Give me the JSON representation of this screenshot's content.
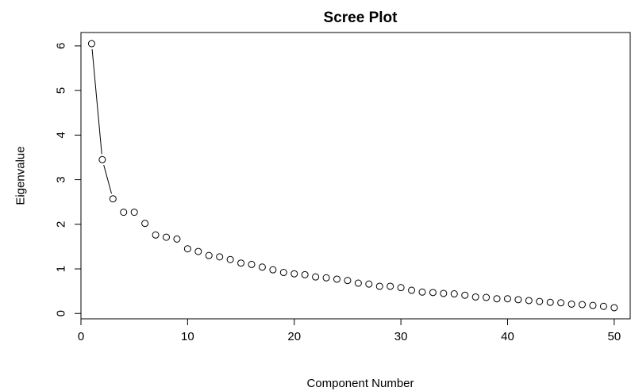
{
  "chart_data": {
    "type": "scatter",
    "title": "Scree Plot",
    "xlabel": "Component Number",
    "ylabel": "Eigenvalue",
    "xlim": [
      0,
      51.5
    ],
    "ylim": [
      -0.12,
      6.3
    ],
    "xticks": [
      0,
      10,
      20,
      30,
      40,
      50
    ],
    "yticks": [
      0,
      1,
      2,
      3,
      4,
      5,
      6
    ],
    "x_tick_labels": [
      "0",
      "10",
      "20",
      "30",
      "40",
      "50"
    ],
    "y_tick_labels": [
      "0",
      "1",
      "2",
      "3",
      "4",
      "5",
      "6"
    ],
    "grid": false,
    "point_style": "open-circle",
    "line_connect_points": [
      1,
      2,
      3
    ],
    "series": [
      {
        "x": [
          1,
          2,
          3,
          4,
          5,
          6,
          7,
          8,
          9,
          10,
          11,
          12,
          13,
          14,
          15,
          16,
          17,
          18,
          19,
          20,
          21,
          22,
          23,
          24,
          25,
          26,
          27,
          28,
          29,
          30,
          31,
          32,
          33,
          34,
          35,
          36,
          37,
          38,
          39,
          40,
          41,
          42,
          43,
          44,
          45,
          46,
          47,
          48,
          49,
          50
        ],
        "values": [
          6.05,
          3.45,
          2.57,
          2.27,
          2.27,
          2.02,
          1.76,
          1.71,
          1.67,
          1.45,
          1.39,
          1.3,
          1.27,
          1.21,
          1.13,
          1.1,
          1.04,
          0.98,
          0.92,
          0.89,
          0.87,
          0.82,
          0.8,
          0.77,
          0.74,
          0.68,
          0.66,
          0.61,
          0.61,
          0.58,
          0.52,
          0.48,
          0.47,
          0.45,
          0.44,
          0.41,
          0.37,
          0.36,
          0.33,
          0.33,
          0.31,
          0.29,
          0.27,
          0.25,
          0.24,
          0.21,
          0.2,
          0.18,
          0.16,
          0.13
        ]
      }
    ]
  }
}
